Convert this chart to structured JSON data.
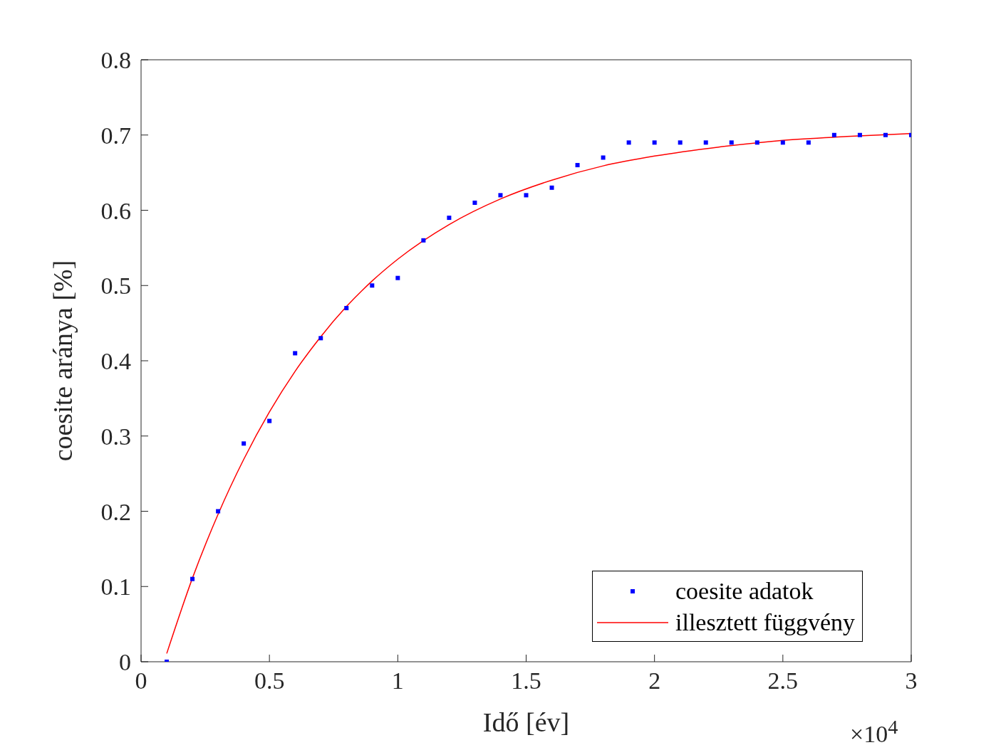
{
  "chart_data": {
    "type": "scatter",
    "xlabel": "Idő [év]",
    "ylabel": "coesite aránya [%]",
    "xlim": [
      0,
      3
    ],
    "ylim": [
      0,
      0.8
    ],
    "xticks": [
      0,
      0.5,
      1,
      1.5,
      2,
      2.5,
      3
    ],
    "yticks": [
      0,
      0.1,
      0.2,
      0.3,
      0.4,
      0.5,
      0.6,
      0.7,
      0.8
    ],
    "annotations": [
      "×10$^{4}$"
    ],
    "grid": false,
    "legend": "bottom right",
    "series": [
      {
        "name": "coesite adatok",
        "marker": "square",
        "color": "#0000ff",
        "x": [
          0.1,
          0.2,
          0.3,
          0.4,
          0.5,
          0.6,
          0.7,
          0.8,
          0.9,
          1,
          1.1,
          1.2,
          1.3,
          1.4,
          1.5,
          1.6,
          1.7,
          1.8,
          1.9,
          2,
          2.1,
          2.2,
          2.3,
          2.4,
          2.5,
          2.6,
          2.7,
          2.8,
          2.9,
          3
        ],
        "values": [
          0,
          0.11,
          0.2,
          0.29,
          0.32,
          0.41,
          0.43,
          0.47,
          0.5,
          0.51,
          0.56,
          0.59,
          0.61,
          0.62,
          0.62,
          0.63,
          0.66,
          0.67,
          0.69,
          0.69,
          0.69,
          0.69,
          0.69,
          0.69,
          0.69,
          0.69,
          0.7,
          0.7,
          0.7,
          0.7
        ]
      },
      {
        "name": "illesztett függvény",
        "type": "line",
        "marker": "none",
        "line_style": "solid",
        "color": "#ff0000",
        "x": [
          0.1,
          0.2,
          0.3,
          0.4,
          0.5,
          0.6,
          0.7,
          0.8,
          0.9,
          1,
          1.2,
          1.4,
          1.6,
          1.8,
          2,
          2.25,
          2.5,
          2.75,
          3
        ],
        "values": [
          0.011,
          0.111,
          0.196,
          0.269,
          0.332,
          0.386,
          0.432,
          0.472,
          0.506,
          0.535,
          0.581,
          0.615,
          0.64,
          0.659,
          0.672,
          0.684,
          0.693,
          0.698,
          0.702
        ]
      }
    ]
  }
}
